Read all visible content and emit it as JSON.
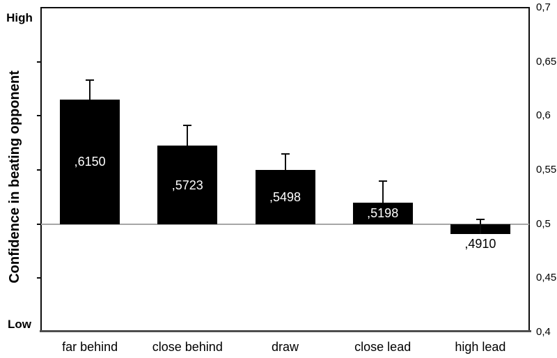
{
  "chart_data": {
    "type": "bar",
    "title": "",
    "ylabel": "Confidence in beating opponent",
    "xlabel": "",
    "categories": [
      "far behind",
      "close behind",
      "draw",
      "close lead",
      "high lead"
    ],
    "values": [
      0.615,
      0.5723,
      0.5498,
      0.5198,
      0.491
    ],
    "value_labels": [
      ",6150",
      ",5723",
      ",5498",
      ",5198",
      ",4910"
    ],
    "errors_upper": [
      0.018,
      0.019,
      0.015,
      0.02,
      0.0135
    ],
    "ylim": [
      0.4,
      0.7
    ],
    "ytick_step": 0.05,
    "right_axis_tick_labels": [
      "0,7",
      "0,65",
      "0,6",
      "0,55",
      "0,5",
      "0,45",
      "0,4"
    ],
    "left_axis_top_label": "High",
    "left_axis_bottom_label": "Low",
    "baseline_value": 0.5,
    "grid": false,
    "legend_position": "none",
    "bar_color": "#000000",
    "baseline_color": "#a6a6a6",
    "bottom_axis_color": "#4d4d4d",
    "value_label_color_inside": "#ffffff",
    "value_label_color_outside": "#000000"
  }
}
